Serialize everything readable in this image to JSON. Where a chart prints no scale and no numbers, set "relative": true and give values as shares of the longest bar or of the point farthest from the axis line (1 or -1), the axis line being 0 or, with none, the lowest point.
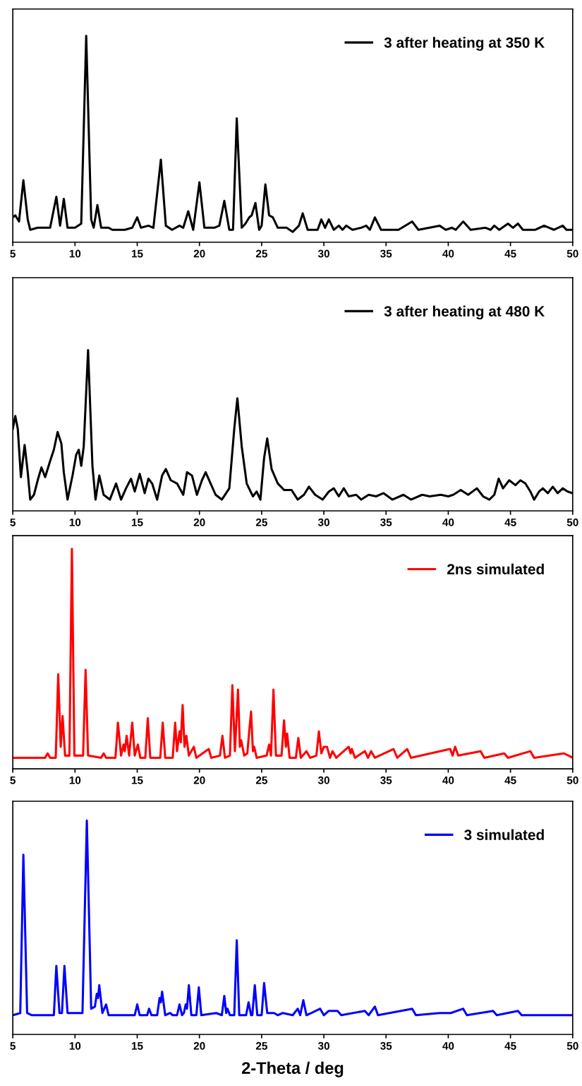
{
  "chart_data": [
    {
      "type": "line",
      "relative": true,
      "legend": "top right",
      "xlim": [
        5,
        50
      ],
      "xticks": [
        5,
        10,
        15,
        20,
        25,
        30,
        35,
        40,
        45,
        50
      ],
      "x": [
        5,
        5.2,
        5.5,
        5.85,
        6.2,
        6.4,
        7,
        8,
        8.5,
        8.8,
        9.1,
        9.4,
        10,
        10.5,
        10.9,
        11.3,
        11.5,
        11.8,
        12.1,
        12.7,
        13,
        14,
        14.6,
        15,
        15.3,
        15.9,
        16.3,
        16.9,
        17.3,
        17.8,
        18.4,
        18.7,
        19.1,
        19.5,
        20,
        20.4,
        21.2,
        21.6,
        22,
        22.4,
        22.7,
        23,
        23.4,
        23.7,
        24,
        24.2,
        24.5,
        24.8,
        25,
        25.3,
        25.6,
        25.9,
        26.3,
        27,
        27.5,
        28,
        28.3,
        28.7,
        29.5,
        29.8,
        30.1,
        30.4,
        30.8,
        31.2,
        31.5,
        31.8,
        32.3,
        33,
        33.4,
        33.7,
        34.1,
        34.6,
        36,
        37.1,
        37.6,
        39.3,
        39.8,
        40.3,
        40.6,
        41.2,
        41.8,
        43,
        43.4,
        43.7,
        44.1,
        44.8,
        45.2,
        45.6,
        46,
        47,
        47.7,
        48.5,
        49.2,
        49.5,
        50
      ],
      "series": [
        {
          "name": "3 after heating at 350 K",
          "color": "#000000",
          "values": [
            0.12,
            0.13,
            0.1,
            0.3,
            0.11,
            0.06,
            0.07,
            0.07,
            0.22,
            0.08,
            0.21,
            0.07,
            0.07,
            0.09,
            1,
            0.11,
            0.07,
            0.18,
            0.07,
            0.07,
            0.06,
            0.06,
            0.07,
            0.12,
            0.07,
            0.08,
            0.07,
            0.4,
            0.08,
            0.06,
            0.08,
            0.07,
            0.15,
            0.06,
            0.29,
            0.07,
            0.07,
            0.08,
            0.2,
            0.06,
            0.06,
            0.6,
            0.07,
            0.09,
            0.12,
            0.13,
            0.19,
            0.06,
            0.08,
            0.28,
            0.13,
            0.12,
            0.07,
            0.07,
            0.05,
            0.08,
            0.14,
            0.06,
            0.06,
            0.11,
            0.07,
            0.11,
            0.06,
            0.08,
            0.06,
            0.08,
            0.06,
            0.07,
            0.08,
            0.06,
            0.12,
            0.06,
            0.06,
            0.1,
            0.06,
            0.08,
            0.06,
            0.07,
            0.06,
            0.1,
            0.06,
            0.07,
            0.06,
            0.08,
            0.06,
            0.09,
            0.07,
            0.09,
            0.06,
            0.06,
            0.08,
            0.06,
            0.08,
            0.06,
            0.06
          ]
        }
      ]
    },
    {
      "type": "line",
      "relative": true,
      "legend": "top right",
      "xlim": [
        5,
        50
      ],
      "xticks": [
        5,
        10,
        15,
        20,
        25,
        30,
        35,
        40,
        45,
        50
      ],
      "x": [
        5,
        5.2,
        5.4,
        5.65,
        5.95,
        6.2,
        6.4,
        6.7,
        7,
        7.3,
        7.6,
        8,
        8.3,
        8.6,
        8.9,
        9.1,
        9.4,
        9.8,
        10.1,
        10.3,
        10.5,
        10.7,
        11.05,
        11.4,
        11.65,
        11.95,
        12.3,
        12.8,
        13.3,
        13.7,
        14.1,
        14.5,
        14.8,
        15.2,
        15.6,
        15.9,
        16.2,
        16.6,
        17,
        17.3,
        17.7,
        18.2,
        18.7,
        19,
        19.4,
        19.8,
        20.2,
        20.5,
        20.9,
        21.3,
        21.8,
        22.4,
        22.8,
        23.05,
        23.4,
        23.8,
        24.3,
        24.6,
        24.9,
        25.2,
        25.45,
        25.8,
        26.3,
        26.8,
        27.4,
        27.9,
        28.4,
        28.8,
        29.3,
        29.9,
        30.4,
        30.8,
        31.2,
        31.6,
        32,
        32.6,
        33,
        33.6,
        34.2,
        34.8,
        35.5,
        36.4,
        37,
        37.9,
        38.5,
        39.4,
        40,
        40.4,
        41,
        41.6,
        42.3,
        42.8,
        43.3,
        43.7,
        44.05,
        44.4,
        44.9,
        45.4,
        45.8,
        46.2,
        46.6,
        46.9,
        47.3,
        47.6,
        48,
        48.4,
        48.8,
        49.2,
        49.6,
        50
      ],
      "series": [
        {
          "name": "3 after heating at 480 K",
          "color": "#000000",
          "values": [
            0.51,
            0.59,
            0.51,
            0.21,
            0.41,
            0.24,
            0.07,
            0.1,
            0.19,
            0.27,
            0.21,
            0.31,
            0.38,
            0.49,
            0.42,
            0.24,
            0.07,
            0.22,
            0.35,
            0.38,
            0.28,
            0.4,
            1,
            0.28,
            0.07,
            0.22,
            0.1,
            0.07,
            0.17,
            0.07,
            0.14,
            0.2,
            0.12,
            0.23,
            0.11,
            0.2,
            0.17,
            0.07,
            0.22,
            0.26,
            0.19,
            0.17,
            0.1,
            0.24,
            0.22,
            0.1,
            0.19,
            0.24,
            0.17,
            0.1,
            0.07,
            0.14,
            0.51,
            0.7,
            0.4,
            0.17,
            0.09,
            0.12,
            0.07,
            0.33,
            0.45,
            0.26,
            0.17,
            0.13,
            0.13,
            0.07,
            0.1,
            0.15,
            0.1,
            0.07,
            0.12,
            0.14,
            0.09,
            0.14,
            0.09,
            0.1,
            0.07,
            0.1,
            0.09,
            0.11,
            0.07,
            0.1,
            0.07,
            0.1,
            0.09,
            0.1,
            0.09,
            0.1,
            0.13,
            0.1,
            0.14,
            0.09,
            0.07,
            0.1,
            0.2,
            0.14,
            0.19,
            0.16,
            0.19,
            0.17,
            0.12,
            0.07,
            0.12,
            0.14,
            0.11,
            0.15,
            0.11,
            0.14,
            0.12,
            0.11
          ]
        }
      ]
    },
    {
      "type": "line",
      "relative": true,
      "legend": "top right",
      "xlim": [
        5,
        50
      ],
      "xticks": [
        5,
        10,
        15,
        20,
        25,
        30,
        35,
        40,
        45,
        50
      ],
      "x": [
        5,
        7.6,
        7.8,
        8,
        8.45,
        8.65,
        8.85,
        9,
        9.2,
        9.55,
        9.75,
        9.95,
        10.65,
        10.85,
        11.05,
        12.1,
        12.3,
        12.5,
        13.25,
        13.45,
        13.7,
        13.9,
        14,
        14.15,
        14.35,
        14.6,
        14.8,
        15.05,
        15.25,
        15.65,
        15.85,
        16.05,
        16.85,
        17.05,
        17.25,
        17.85,
        18.05,
        18.2,
        18.4,
        18.5,
        18.65,
        18.8,
        18.95,
        19.15,
        19.55,
        19.75,
        20.75,
        20.95,
        21.65,
        21.85,
        22.05,
        22.45,
        22.65,
        22.85,
        23.1,
        23.25,
        23.35,
        23.6,
        23.85,
        24,
        24.15,
        24.3,
        24.4,
        24.6,
        25.4,
        25.6,
        25.75,
        25.95,
        26.15,
        26.6,
        26.8,
        26.95,
        27.05,
        27.25,
        27.75,
        27.95,
        28.15,
        28.6,
        28.9,
        29.4,
        29.6,
        29.8,
        30,
        30.25,
        30.5,
        30.7,
        31,
        32,
        32.15,
        32.25,
        32.5,
        33.3,
        33.55,
        33.8,
        34.1,
        35.6,
        35.9,
        36.7,
        37,
        40.15,
        40.35,
        40.55,
        40.8,
        42.6,
        42.9,
        44.5,
        44.8,
        46.6,
        46.9,
        49.3,
        50
      ],
      "series": [
        {
          "name": "2ns simulated",
          "color": "#ff0000",
          "values": [
            0.05,
            0.05,
            0.07,
            0.05,
            0.05,
            0.43,
            0.1,
            0.24,
            0.06,
            0.06,
            1,
            0.06,
            0.06,
            0.45,
            0.06,
            0.05,
            0.07,
            0.05,
            0.05,
            0.21,
            0.06,
            0.11,
            0.08,
            0.15,
            0.06,
            0.21,
            0.06,
            0.11,
            0.05,
            0.05,
            0.23,
            0.05,
            0.05,
            0.21,
            0.05,
            0.05,
            0.21,
            0.08,
            0.17,
            0.12,
            0.29,
            0.1,
            0.15,
            0.06,
            0.1,
            0.05,
            0.09,
            0.05,
            0.06,
            0.15,
            0.05,
            0.06,
            0.38,
            0.08,
            0.36,
            0.1,
            0.13,
            0.06,
            0.07,
            0.17,
            0.26,
            0.08,
            0.1,
            0.05,
            0.06,
            0.11,
            0.06,
            0.36,
            0.06,
            0.06,
            0.22,
            0.1,
            0.16,
            0.05,
            0.05,
            0.14,
            0.05,
            0.08,
            0.05,
            0.06,
            0.17,
            0.07,
            0.1,
            0.1,
            0.05,
            0.08,
            0.05,
            0.1,
            0.07,
            0.09,
            0.05,
            0.08,
            0.05,
            0.08,
            0.05,
            0.09,
            0.05,
            0.09,
            0.05,
            0.09,
            0.06,
            0.1,
            0.06,
            0.08,
            0.05,
            0.07,
            0.05,
            0.08,
            0.05,
            0.07,
            0.05
          ]
        }
      ]
    },
    {
      "type": "line",
      "relative": true,
      "legend": "top right",
      "xlim": [
        5,
        50
      ],
      "xticks": [
        5,
        10,
        15,
        20,
        25,
        30,
        35,
        40,
        45,
        50
      ],
      "xlabel": "2-Theta / deg",
      "x": [
        5,
        5.6,
        5.85,
        6.15,
        6.5,
        8.3,
        8.5,
        8.75,
        8.95,
        9.15,
        9.4,
        10.6,
        10.95,
        11.3,
        11.6,
        11.75,
        11.85,
        11.95,
        12.2,
        12.5,
        12.7,
        14.8,
        15,
        15.2,
        15.8,
        15.95,
        16.15,
        16.6,
        16.8,
        16.9,
        17,
        17.25,
        17.65,
        17.85,
        18.2,
        18.4,
        18.6,
        18.75,
        18.9,
        19,
        19.15,
        19.35,
        19.75,
        19.95,
        20.15,
        21.35,
        21.8,
        22,
        22.15,
        22.25,
        22.45,
        22.8,
        23,
        23.2,
        23.75,
        23.95,
        24.15,
        24.25,
        24.45,
        24.65,
        25,
        25.2,
        25.45,
        25.7,
        26,
        26.3,
        26.7,
        27.5,
        27.9,
        28.1,
        28.35,
        28.6,
        29,
        29.7,
        30,
        30.4,
        30.7,
        31.1,
        31.4,
        33.3,
        33.6,
        34.1,
        34.35,
        37.1,
        37.4,
        39.3,
        40.2,
        41.2,
        41.5,
        43.6,
        43.9,
        45.6,
        45.9,
        50
      ],
      "series": [
        {
          "name": "3 simulated",
          "color": "#0000ff",
          "values": [
            0.09,
            0.1,
            0.84,
            0.1,
            0.09,
            0.09,
            0.32,
            0.1,
            0.1,
            0.32,
            0.1,
            0.1,
            1,
            0.12,
            0.13,
            0.19,
            0.17,
            0.23,
            0.1,
            0.14,
            0.09,
            0.09,
            0.14,
            0.09,
            0.09,
            0.12,
            0.09,
            0.09,
            0.17,
            0.15,
            0.2,
            0.09,
            0.1,
            0.09,
            0.09,
            0.14,
            0.09,
            0.1,
            0.14,
            0.12,
            0.23,
            0.09,
            0.09,
            0.22,
            0.09,
            0.1,
            0.09,
            0.18,
            0.1,
            0.12,
            0.09,
            0.09,
            0.44,
            0.09,
            0.09,
            0.15,
            0.09,
            0.09,
            0.23,
            0.09,
            0.09,
            0.24,
            0.1,
            0.1,
            0.1,
            0.09,
            0.1,
            0.09,
            0.12,
            0.09,
            0.16,
            0.09,
            0.1,
            0.12,
            0.09,
            0.11,
            0.11,
            0.11,
            0.09,
            0.11,
            0.09,
            0.13,
            0.09,
            0.12,
            0.09,
            0.1,
            0.1,
            0.12,
            0.09,
            0.11,
            0.09,
            0.11,
            0.09,
            0.09
          ]
        }
      ]
    }
  ]
}
